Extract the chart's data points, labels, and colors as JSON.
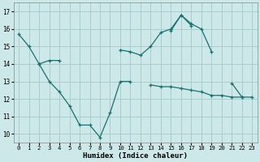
{
  "xlabel": "Humidex (Indice chaleur)",
  "bg_color": "#cce8e8",
  "grid_color": "#aacccc",
  "line_color": "#1a7070",
  "xlim": [
    -0.5,
    23.5
  ],
  "ylim": [
    9.5,
    17.5
  ],
  "yticks": [
    10,
    11,
    12,
    13,
    14,
    15,
    16,
    17
  ],
  "xticks": [
    0,
    1,
    2,
    3,
    4,
    5,
    6,
    7,
    8,
    9,
    10,
    11,
    12,
    13,
    14,
    15,
    16,
    17,
    18,
    19,
    20,
    21,
    22,
    23
  ],
  "series": [
    {
      "segments": [
        {
          "x": [
            0,
            1,
            2,
            3,
            4
          ],
          "y": [
            15.7,
            15.0,
            14.0,
            14.2,
            14.2
          ]
        },
        {
          "x": [
            10,
            11,
            12,
            13,
            14,
            15,
            16,
            17,
            18,
            19
          ],
          "y": [
            14.8,
            14.7,
            14.5,
            15.0,
            15.8,
            16.0,
            16.8,
            16.3,
            16.0,
            14.7
          ]
        }
      ]
    },
    {
      "segments": [
        {
          "x": [
            2,
            3,
            4,
            5,
            6,
            7,
            8,
            9,
            10,
            11
          ],
          "y": [
            14.0,
            13.0,
            12.4,
            11.6,
            10.5,
            10.5,
            9.8,
            11.2,
            13.0,
            13.0
          ]
        },
        {
          "x": [
            15,
            16,
            17
          ],
          "y": [
            15.9,
            16.8,
            16.2
          ]
        },
        {
          "x": [
            21,
            22
          ],
          "y": [
            12.9,
            12.1
          ]
        }
      ]
    },
    {
      "segments": [
        {
          "x": [
            13,
            14,
            15,
            16,
            17,
            18,
            19,
            20,
            21,
            22,
            23
          ],
          "y": [
            12.8,
            12.7,
            12.7,
            12.6,
            12.5,
            12.4,
            12.2,
            12.2,
            12.1,
            12.1,
            12.1
          ]
        }
      ]
    }
  ]
}
